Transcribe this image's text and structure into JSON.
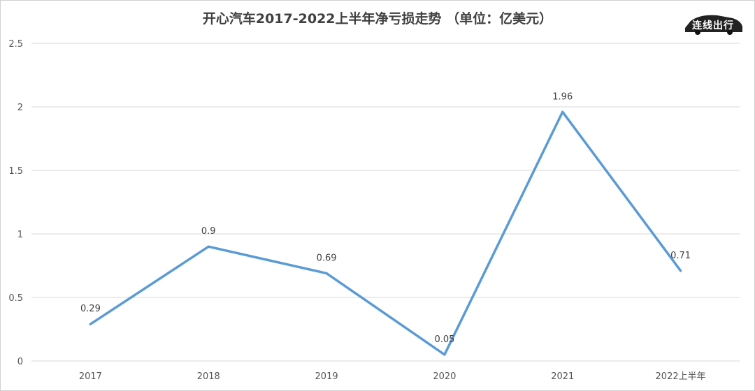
{
  "chart_data": {
    "type": "line",
    "title": "开心汽车2017-2022上半年净亏损走势 （单位：亿美元）",
    "categories": [
      "2017",
      "2018",
      "2019",
      "2020",
      "2021",
      "2022上半年"
    ],
    "series": [
      {
        "values": [
          0.29,
          0.9,
          0.69,
          0.05,
          1.96,
          0.71
        ],
        "color": "#5b9bd5"
      }
    ],
    "data_labels": [
      "0.29",
      "0.9",
      "0.69",
      "0.05",
      "1.96",
      "0.71"
    ],
    "ylim": [
      0,
      2.5
    ],
    "yticks": [
      0,
      0.5,
      1,
      1.5,
      2,
      2.5
    ],
    "ytick_labels": [
      "0",
      "0.5",
      "1",
      "1.5",
      "2",
      "2.5"
    ],
    "grid": true,
    "legend": "none"
  },
  "watermark": {
    "text": "连线出行"
  },
  "colors": {
    "line": "#5b9bd5",
    "grid": "#d9d9d9",
    "text": "#404040"
  }
}
